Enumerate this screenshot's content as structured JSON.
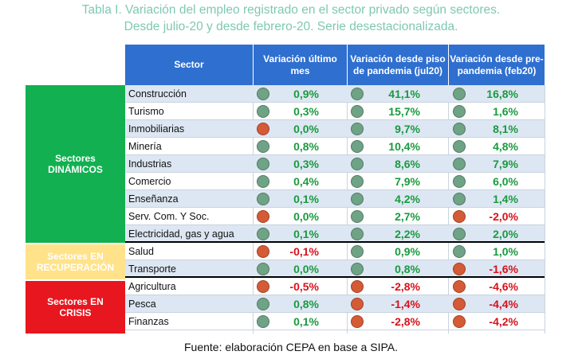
{
  "title": {
    "line1": "Tabla I. Variación del empleo registrado en el sector privado según sectores.",
    "line2": "Desde julio-20 y desde febrero-20. Serie desestacionalizada."
  },
  "headers": {
    "sector": "Sector",
    "col1": "Variación último mes",
    "col2": "Variación desde piso de pandemia (jul20)",
    "col3": "Variación desde pre-pandemia (feb20)"
  },
  "groups": {
    "dinamicos": "Sectores DINÁMICOS",
    "recuperacion": "Sectores EN RECUPERACIÓN",
    "crisis": "Sectores EN CRISIS"
  },
  "rows": [
    {
      "sector": "Construcción",
      "c1": "0,9%",
      "c1s": "green",
      "c2": "41,1%",
      "c2s": "green",
      "c3": "16,8%",
      "c3s": "green"
    },
    {
      "sector": "Turismo",
      "c1": "0,3%",
      "c1s": "green",
      "c2": "15,7%",
      "c2s": "green",
      "c3": "1,6%",
      "c3s": "green"
    },
    {
      "sector": "Inmobiliarias",
      "c1": "0,0%",
      "c1s": "red",
      "c2": "9,7%",
      "c2s": "green",
      "c3": "8,1%",
      "c3s": "green"
    },
    {
      "sector": "Minería",
      "c1": "0,8%",
      "c1s": "green",
      "c2": "10,4%",
      "c2s": "green",
      "c3": "4,8%",
      "c3s": "green"
    },
    {
      "sector": "Industrias",
      "c1": "0,3%",
      "c1s": "green",
      "c2": "8,6%",
      "c2s": "green",
      "c3": "7,9%",
      "c3s": "green"
    },
    {
      "sector": "Comercio",
      "c1": "0,4%",
      "c1s": "green",
      "c2": "7,9%",
      "c2s": "green",
      "c3": "6,0%",
      "c3s": "green"
    },
    {
      "sector": "Enseñanza",
      "c1": "0,1%",
      "c1s": "green",
      "c2": "4,2%",
      "c2s": "green",
      "c3": "1,4%",
      "c3s": "green"
    },
    {
      "sector": "Serv. Com. Y Soc.",
      "c1": "0,0%",
      "c1s": "red",
      "c2": "2,7%",
      "c2s": "green",
      "c3": "-2,0%",
      "c3s": "red"
    },
    {
      "sector": "Electricidad, gas y agua",
      "c1": "0,1%",
      "c1s": "green",
      "c2": "2,2%",
      "c2s": "green",
      "c3": "2,0%",
      "c3s": "green"
    },
    {
      "sector": "Salud",
      "c1": "-0,1%",
      "c1s": "red",
      "c2": "0,9%",
      "c2s": "green",
      "c3": "1,0%",
      "c3s": "green"
    },
    {
      "sector": "Transporte",
      "c1": "0,0%",
      "c1s": "green",
      "c2": "0,8%",
      "c2s": "green",
      "c3": "-1,6%",
      "c3s": "red"
    },
    {
      "sector": "Agricultura",
      "c1": "-0,5%",
      "c1s": "red",
      "c2": "-2,8%",
      "c2s": "red",
      "c3": "-4,6%",
      "c3s": "red"
    },
    {
      "sector": "Pesca",
      "c1": "0,8%",
      "c1s": "green",
      "c2": "-1,4%",
      "c2s": "red",
      "c3": "-4,4%",
      "c3s": "red"
    },
    {
      "sector": "Finanzas",
      "c1": "0,1%",
      "c1s": "green",
      "c2": "-2,8%",
      "c2s": "red",
      "c3": "-4,2%",
      "c3s": "red"
    }
  ],
  "colors": {
    "header_bg": "#2f6fd0",
    "dinamicos": "#12b050",
    "recuperacion": "#ffe28a",
    "crisis": "#e8161f",
    "green_text": "#1a9a3f",
    "red_text": "#d8111b",
    "green_dot": "#6fa386",
    "red_dot": "#d55a36"
  },
  "footer": "Fuente: elaboración CEPA en base a SIPA."
}
